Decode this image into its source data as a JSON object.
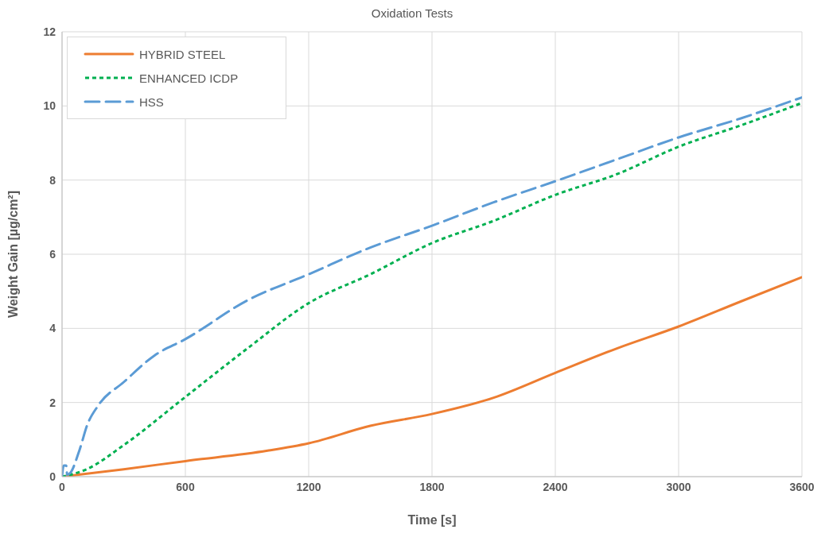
{
  "chart_data": {
    "type": "line",
    "title": "Oxidation Tests",
    "xlabel": "Time [s]",
    "ylabel": "Weight Gain [µg/cm²]",
    "xlim": [
      0,
      3600
    ],
    "xticks": [
      0,
      600,
      1200,
      1800,
      2400,
      3000,
      3600
    ],
    "ylim": [
      0,
      12
    ],
    "yticks": [
      0,
      2,
      4,
      6,
      8,
      10,
      12
    ],
    "grid": true,
    "legend": "top left",
    "marker": "none",
    "series": [
      {
        "name": "HYBRID STEEL",
        "color": "#ed7d31",
        "line_style": "solid",
        "x": [
          0,
          300,
          600,
          1000,
          1200,
          1500,
          1800,
          2100,
          2400,
          2700,
          3000,
          3300,
          3600
        ],
        "values": [
          0,
          0.2,
          0.42,
          0.7,
          0.9,
          1.37,
          1.69,
          2.13,
          2.8,
          3.46,
          4.05,
          4.72,
          5.38
        ]
      },
      {
        "name": "ENHANCED ICDP",
        "color": "#00b050",
        "line_style": "dotted",
        "x": [
          0,
          120,
          300,
          600,
          900,
          1200,
          1500,
          1800,
          2100,
          2400,
          2700,
          3000,
          3300,
          3600
        ],
        "values": [
          0,
          0.2,
          0.85,
          2.15,
          3.45,
          4.68,
          5.46,
          6.3,
          6.9,
          7.6,
          8.16,
          8.9,
          9.47,
          10.08
        ]
      },
      {
        "name": "HSS",
        "color": "#5b9bd5",
        "line_style": "dashed",
        "x": [
          0,
          8,
          20,
          25,
          40,
          85,
          123,
          176,
          300,
          450,
          600,
          900,
          1200,
          1500,
          1800,
          2100,
          2400,
          2700,
          3000,
          3300,
          3600
        ],
        "values": [
          0,
          0.3,
          0.3,
          0.05,
          0.1,
          0.72,
          1.4,
          1.92,
          2.55,
          3.27,
          3.71,
          4.75,
          5.46,
          6.18,
          6.77,
          7.4,
          7.97,
          8.56,
          9.15,
          9.66,
          10.23
        ]
      }
    ]
  }
}
